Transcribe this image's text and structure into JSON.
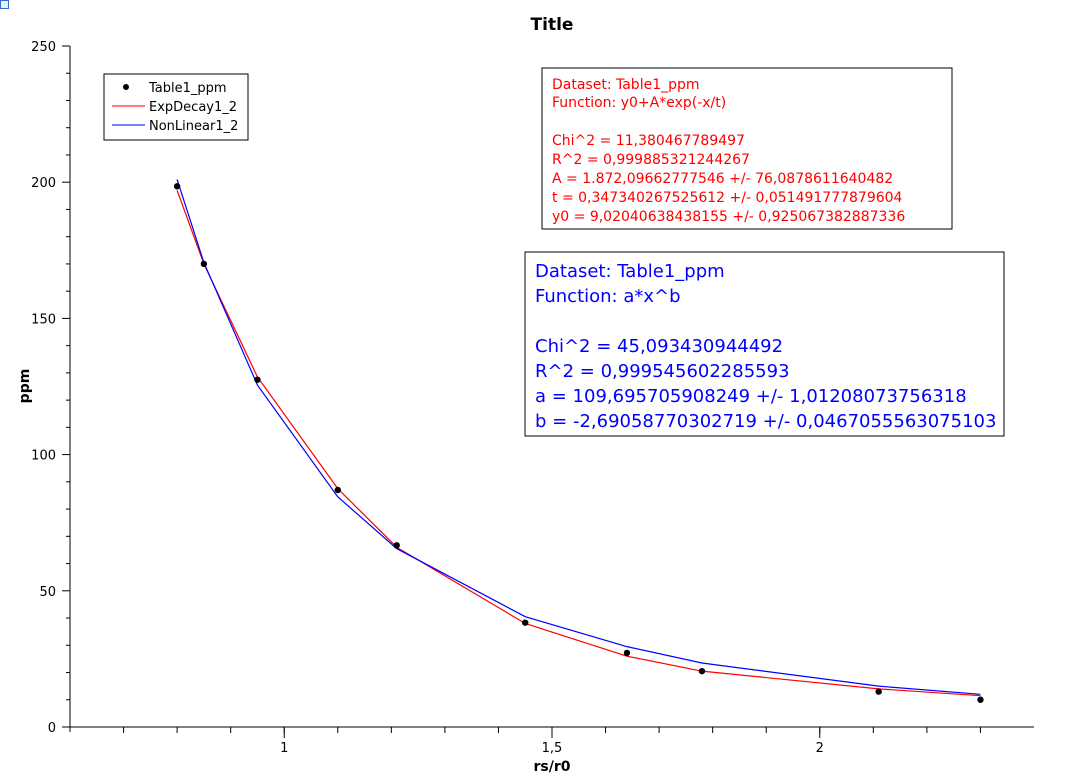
{
  "chart_data": {
    "type": "scatter",
    "title": "Title",
    "xlabel": "rs/r0",
    "ylabel": "ppm",
    "xlim": [
      0.6,
      2.4
    ],
    "ylim": [
      0,
      250
    ],
    "x_ticks": [
      1,
      1.5,
      2
    ],
    "x_tick_labels": [
      "1",
      "1,5",
      "2"
    ],
    "y_ticks": [
      0,
      50,
      100,
      150,
      200,
      250
    ],
    "y_tick_labels": [
      "0",
      "50",
      "100",
      "150",
      "200",
      "250"
    ],
    "grid": false,
    "legend_position": "top-left",
    "series": [
      {
        "name": "Table1_ppm",
        "kind": "points",
        "color": "#000000",
        "x": [
          0.8,
          0.85,
          0.95,
          1.1,
          1.21,
          1.45,
          1.64,
          1.78,
          2.11,
          2.3
        ],
        "y": [
          198.5,
          170,
          127.5,
          87,
          66.7,
          38.3,
          27.2,
          20.5,
          13,
          10
        ]
      },
      {
        "name": "ExpDecay1_2",
        "kind": "line",
        "color": "#ff0000",
        "x": [
          0.8,
          0.85,
          0.95,
          1.1,
          1.21,
          1.45,
          1.64,
          1.78,
          2.11,
          2.3
        ],
        "y": [
          197,
          170,
          128.5,
          87.5,
          66,
          38,
          26,
          20.5,
          14,
          11.5
        ]
      },
      {
        "name": "NonLinear1_2",
        "kind": "line",
        "color": "#0000ff",
        "x": [
          0.8,
          0.85,
          0.95,
          1.1,
          1.21,
          1.45,
          1.64,
          1.78,
          2.11,
          2.3
        ],
        "y": [
          201,
          170.5,
          125.5,
          84.5,
          65.5,
          40.5,
          29.5,
          23.5,
          15,
          12
        ]
      }
    ],
    "annotations": [
      {
        "color": "#ff0000",
        "lines": [
          "Dataset: Table1_ppm",
          "Function: y0+A*exp(-x/t)",
          "",
          "Chi^2 = 11,380467789497",
          "R^2 = 0,999885321244267",
          "A = 1.872,09662777546 +/- 76,0878611640482",
          "t = 0,347340267525612 +/- 0,051491777879604",
          "y0 = 9,02040638438155 +/- 0,925067382887336"
        ]
      },
      {
        "color": "#0000ff",
        "lines": [
          "Dataset: Table1_ppm",
          "Function: a*x^b",
          "",
          "Chi^2 = 45,093430944492",
          "R^2 = 0,999545602285593",
          "a = 109,695705908249 +/- 1,01208073756318",
          "b = -2,69058770302719 +/- 0,0467055563075103"
        ]
      }
    ]
  }
}
